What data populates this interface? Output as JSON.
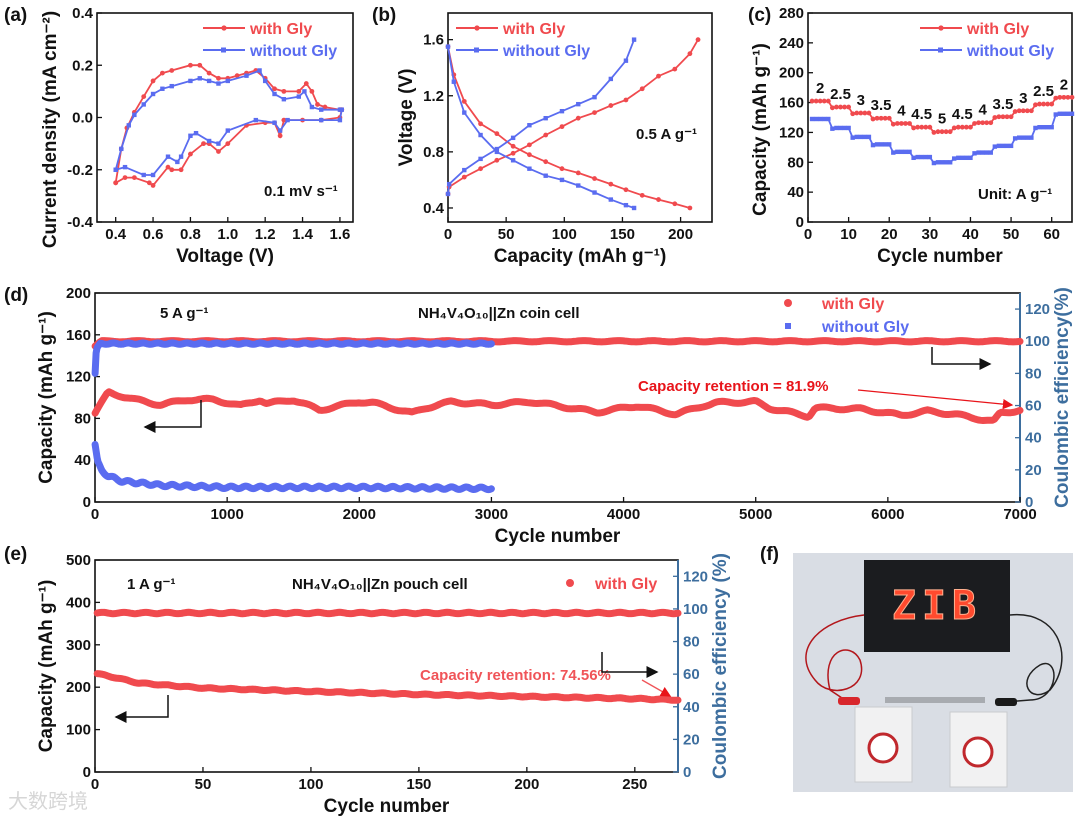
{
  "colors": {
    "with_gly": "#f04a4e",
    "without_gly": "#5a6cf0",
    "right_axis": "#3d6e9e",
    "retention_text": "#e8141a",
    "retention_text_e": "#f05458"
  },
  "legend": {
    "with": "with Gly",
    "without": "without Gly"
  },
  "panel_labels": {
    "a": "(a)",
    "b": "(b)",
    "c": "(c)",
    "d": "(d)",
    "e": "(e)",
    "f": "(f)"
  },
  "watermark": "大数跨境",
  "chart_data": [
    {
      "id": "a",
      "type": "line",
      "xlabel": "Voltage (V)",
      "ylabel": "Current density (mA cm⁻²)",
      "xlim": [
        0.3,
        1.67
      ],
      "ylim": [
        -0.4,
        0.4
      ],
      "xticks": [
        0.4,
        0.6,
        0.8,
        1.0,
        1.2,
        1.4,
        1.6
      ],
      "xtick_labels": [
        "0.4",
        "0.6",
        "0.8",
        "1.0",
        "1.2",
        "1.4",
        "1.6"
      ],
      "yticks": [
        -0.4,
        -0.2,
        0.0,
        0.2,
        0.4
      ],
      "ytick_labels": [
        "-0.4",
        "-0.2",
        "0.0",
        "0.2",
        "0.4"
      ],
      "annotation": "0.1 mV s⁻¹",
      "legend_position": "top-right",
      "series": [
        {
          "name": "with Gly",
          "marker": "circle",
          "x": [
            0.4,
            0.43,
            0.46,
            0.5,
            0.55,
            0.6,
            0.65,
            0.7,
            0.8,
            0.85,
            0.9,
            0.95,
            1.0,
            1.05,
            1.1,
            1.15,
            1.2,
            1.25,
            1.3,
            1.38,
            1.42,
            1.45,
            1.48,
            1.52,
            1.6,
            1.61,
            1.6,
            1.5,
            1.4,
            1.3,
            1.28,
            1.25,
            1.2,
            1.1,
            1.0,
            0.95,
            0.9,
            0.87,
            0.8,
            0.75,
            0.7,
            0.68,
            0.6,
            0.58,
            0.5,
            0.45,
            0.4
          ],
          "y": [
            -0.25,
            -0.12,
            -0.04,
            0.02,
            0.08,
            0.14,
            0.17,
            0.18,
            0.2,
            0.2,
            0.17,
            0.15,
            0.15,
            0.16,
            0.17,
            0.18,
            0.15,
            0.11,
            0.1,
            0.1,
            0.13,
            0.1,
            0.05,
            0.04,
            0.03,
            0.03,
            0.0,
            -0.01,
            -0.01,
            -0.01,
            -0.07,
            -0.02,
            -0.02,
            -0.03,
            -0.1,
            -0.13,
            -0.1,
            -0.1,
            -0.14,
            -0.2,
            -0.2,
            -0.19,
            -0.26,
            -0.25,
            -0.23,
            -0.23,
            -0.25
          ]
        },
        {
          "name": "without Gly",
          "marker": "square",
          "x": [
            0.4,
            0.43,
            0.47,
            0.5,
            0.55,
            0.6,
            0.65,
            0.7,
            0.8,
            0.85,
            0.9,
            0.95,
            1.0,
            1.1,
            1.17,
            1.2,
            1.25,
            1.3,
            1.38,
            1.41,
            1.45,
            1.5,
            1.6,
            1.61,
            1.6,
            1.5,
            1.32,
            1.28,
            1.25,
            1.15,
            1.0,
            0.95,
            0.9,
            0.83,
            0.8,
            0.75,
            0.73,
            0.68,
            0.6,
            0.55,
            0.45,
            0.4
          ],
          "y": [
            -0.2,
            -0.12,
            -0.03,
            0.01,
            0.05,
            0.09,
            0.11,
            0.12,
            0.14,
            0.15,
            0.14,
            0.13,
            0.14,
            0.16,
            0.18,
            0.14,
            0.09,
            0.07,
            0.08,
            0.1,
            0.04,
            0.03,
            0.03,
            0.03,
            -0.01,
            -0.01,
            -0.01,
            -0.05,
            -0.02,
            -0.01,
            -0.05,
            -0.1,
            -0.09,
            -0.06,
            -0.07,
            -0.15,
            -0.17,
            -0.15,
            -0.22,
            -0.22,
            -0.19,
            -0.2
          ]
        }
      ]
    },
    {
      "id": "b",
      "type": "line",
      "xlabel": "Capacity (mAh g⁻¹)",
      "ylabel": "Voltage (V)",
      "xlim": [
        0,
        227
      ],
      "ylim": [
        0.3,
        1.79
      ],
      "xticks": [
        0,
        50,
        100,
        150,
        200
      ],
      "xtick_labels": [
        "0",
        "50",
        "100",
        "150",
        "200"
      ],
      "yticks": [
        0.4,
        0.8,
        1.2,
        1.6
      ],
      "ytick_labels": [
        "0.4",
        "0.8",
        "1.2",
        "1.6"
      ],
      "annotation": "0.5 A g⁻¹",
      "legend_position": "top-left",
      "series": [
        {
          "name": "with Gly (charge)",
          "marker": "circle",
          "x": [
            0,
            1,
            14,
            28,
            42,
            56,
            70,
            84,
            98,
            112,
            126,
            140,
            153,
            167,
            181,
            195,
            208,
            215
          ],
          "y": [
            0.5,
            0.55,
            0.62,
            0.68,
            0.74,
            0.79,
            0.85,
            0.92,
            0.98,
            1.04,
            1.08,
            1.13,
            1.17,
            1.25,
            1.34,
            1.39,
            1.5,
            1.6
          ]
        },
        {
          "name": "with Gly (discharge)",
          "marker": "circle",
          "x": [
            0,
            5,
            14,
            28,
            42,
            56,
            70,
            84,
            98,
            112,
            126,
            140,
            153,
            167,
            181,
            195,
            208
          ],
          "y": [
            1.55,
            1.35,
            1.16,
            1.0,
            0.93,
            0.84,
            0.78,
            0.73,
            0.68,
            0.65,
            0.61,
            0.57,
            0.53,
            0.49,
            0.46,
            0.43,
            0.4
          ]
        },
        {
          "name": "without Gly (charge)",
          "marker": "square",
          "x": [
            0,
            1,
            14,
            28,
            42,
            56,
            70,
            84,
            98,
            112,
            126,
            140,
            153,
            160
          ],
          "y": [
            0.5,
            0.57,
            0.67,
            0.75,
            0.82,
            0.9,
            0.99,
            1.04,
            1.09,
            1.14,
            1.19,
            1.32,
            1.45,
            1.6
          ]
        },
        {
          "name": "without Gly (discharge)",
          "marker": "square",
          "x": [
            0,
            5,
            14,
            28,
            42,
            56,
            70,
            84,
            98,
            112,
            126,
            140,
            153,
            160
          ],
          "y": [
            1.55,
            1.3,
            1.08,
            0.92,
            0.8,
            0.74,
            0.68,
            0.63,
            0.6,
            0.56,
            0.51,
            0.46,
            0.42,
            0.4
          ]
        }
      ]
    },
    {
      "id": "c",
      "type": "line",
      "xlabel": "Cycle number",
      "ylabel": "Capacity (mAh g⁻¹)",
      "xlim": [
        0,
        65
      ],
      "ylim": [
        0,
        280
      ],
      "xticks": [
        0,
        10,
        20,
        30,
        40,
        50,
        60
      ],
      "xtick_labels": [
        "0",
        "10",
        "20",
        "30",
        "40",
        "50",
        "60"
      ],
      "yticks": [
        0,
        40,
        80,
        120,
        160,
        200,
        240,
        280
      ],
      "ytick_labels": [
        "0",
        "40",
        "80",
        "120",
        "160",
        "200",
        "240",
        "280"
      ],
      "annotation": "Unit: A g⁻¹",
      "legend_position": "top-right",
      "rates": [
        "2",
        "2.5",
        "3",
        "3.5",
        "4",
        "4.5",
        "5",
        "4.5",
        "4",
        "3.5",
        "3",
        "2.5",
        "2"
      ],
      "cycles_per_step": 5,
      "series": [
        {
          "name": "with Gly",
          "marker": "circle",
          "step_values": [
            162,
            154,
            146,
            139,
            132,
            127,
            121,
            127,
            133,
            141,
            149,
            158,
            167
          ]
        },
        {
          "name": "without Gly",
          "marker": "square",
          "step_values": [
            138,
            126,
            114,
            104,
            94,
            87,
            80,
            86,
            93,
            102,
            113,
            127,
            145
          ]
        }
      ]
    },
    {
      "id": "d",
      "type": "scatter",
      "xlabel": "Cycle number",
      "ylabel": "Capacity (mAh g⁻¹)",
      "y2label": "Coulombic efficiency(%)",
      "xlim": [
        0,
        7000
      ],
      "ylim": [
        0,
        200
      ],
      "y2lim": [
        0,
        130
      ],
      "xticks": [
        0,
        1000,
        2000,
        3000,
        4000,
        5000,
        6000,
        7000
      ],
      "xtick_labels": [
        "0",
        "1000",
        "2000",
        "3000",
        "4000",
        "5000",
        "6000",
        "7000"
      ],
      "yticks": [
        0,
        40,
        80,
        120,
        160,
        200
      ],
      "ytick_labels": [
        "0",
        "40",
        "80",
        "120",
        "160",
        "200"
      ],
      "y2ticks": [
        0,
        20,
        40,
        60,
        80,
        100,
        120
      ],
      "y2tick_labels": [
        "0",
        "20",
        "40",
        "60",
        "80",
        "100",
        "120"
      ],
      "rate_label": "5 A g⁻¹",
      "cell_label": "NH₄V₄O₁₀||Zn coin cell",
      "retention_label": "Capacity retention = 81.9%",
      "legend_position": "top-right",
      "series": [
        {
          "name": "with Gly",
          "quantity": "capacity",
          "axis": "left",
          "x": [
            1,
            100,
            300,
            500,
            700,
            900,
            1100,
            1250,
            1300,
            1500,
            1700,
            2000,
            2100,
            2400,
            2500,
            2700,
            3000,
            3300,
            3500,
            3800,
            4100,
            4400,
            4600,
            4700,
            5000,
            5100,
            5400,
            5450,
            5800,
            6100,
            6300,
            6500,
            6800,
            6850,
            7000
          ],
          "y": [
            85,
            105,
            98,
            93,
            98,
            98,
            92,
            98,
            94,
            98,
            88,
            96,
            95,
            85,
            90,
            96,
            93,
            96,
            92,
            86,
            92,
            84,
            92,
            95,
            96,
            90,
            82,
            90,
            89,
            83,
            87,
            84,
            77,
            85,
            88
          ]
        },
        {
          "name": "without Gly",
          "quantity": "capacity",
          "axis": "left",
          "x": [
            1,
            20,
            50,
            100,
            200,
            500,
            1000,
            2000,
            3000
          ],
          "y": [
            55,
            38,
            30,
            25,
            20,
            16,
            14,
            14,
            13
          ]
        },
        {
          "name": "with Gly",
          "quantity": "coulombic_efficiency",
          "axis": "right",
          "x": [
            1,
            50,
            7000
          ],
          "y": [
            97,
            100,
            100
          ]
        },
        {
          "name": "without Gly",
          "quantity": "coulombic_efficiency",
          "axis": "right",
          "x": [
            1,
            10,
            40,
            3000
          ],
          "y": [
            80,
            95,
            98.5,
            98.5
          ]
        }
      ]
    },
    {
      "id": "e",
      "type": "scatter",
      "xlabel": "Cycle number",
      "ylabel": "Capacity (mAh g⁻¹)",
      "y2label": "Coulombic efficiency (%)",
      "xlim": [
        0,
        270
      ],
      "ylim": [
        0,
        500
      ],
      "y2lim": [
        0,
        130
      ],
      "xticks": [
        0,
        50,
        100,
        150,
        200,
        250
      ],
      "xtick_labels": [
        "0",
        "50",
        "100",
        "150",
        "200",
        "250"
      ],
      "yticks": [
        0,
        100,
        200,
        300,
        400,
        500
      ],
      "ytick_labels": [
        "0",
        "100",
        "200",
        "300",
        "400",
        "500"
      ],
      "y2ticks": [
        0,
        20,
        40,
        60,
        80,
        100,
        120
      ],
      "y2tick_labels": [
        "0",
        "20",
        "40",
        "60",
        "80",
        "100",
        "120"
      ],
      "rate_label": "1 A g⁻¹",
      "cell_label": "NH₄V₄O₁₀||Zn pouch cell",
      "retention_label": "Capacity retention: 74.56%",
      "legend_position": "top-right",
      "series": [
        {
          "name": "with Gly",
          "quantity": "capacity",
          "axis": "left",
          "x": [
            1,
            10,
            20,
            50,
            100,
            150,
            200,
            250,
            270
          ],
          "y": [
            232,
            222,
            210,
            198,
            190,
            183,
            178,
            173,
            170
          ]
        },
        {
          "name": "with Gly",
          "quantity": "coulombic_efficiency",
          "axis": "right",
          "x": [
            1,
            270
          ],
          "y": [
            97.5,
            97.5
          ]
        }
      ]
    }
  ],
  "photo": {
    "led_text": "ZIB"
  }
}
